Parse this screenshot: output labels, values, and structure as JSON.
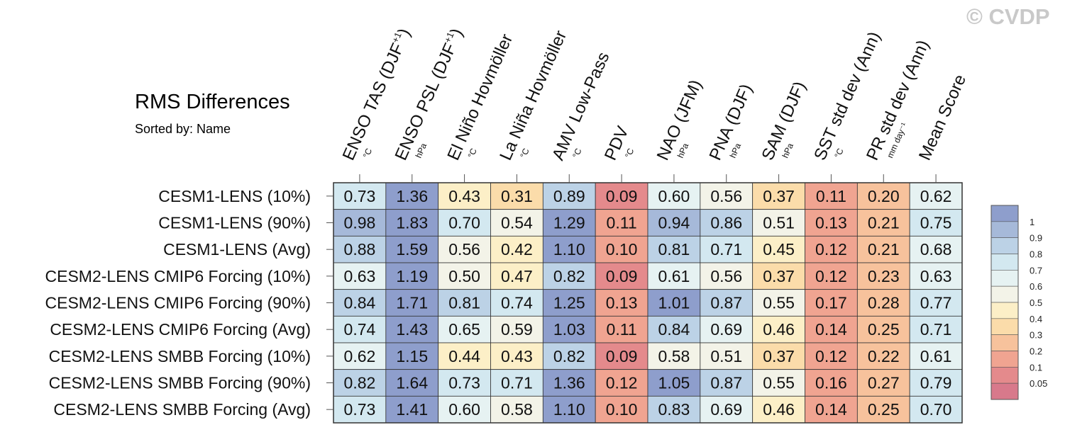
{
  "watermark": "© CVDP",
  "title": "RMS Differences",
  "subtitle": "Sorted by: Name",
  "chart_data": {
    "type": "heatmap",
    "title": "RMS Differences",
    "subtitle": "Sorted by: Name",
    "columns": [
      {
        "name": "ENSO TAS (DJF",
        "sup": "+1",
        "close": ")",
        "unit": "°C"
      },
      {
        "name": "ENSO PSL (DJF",
        "sup": "+1",
        "close": ")",
        "unit": "hPa"
      },
      {
        "name": "El Niño Hovmöller",
        "sup": "",
        "close": "",
        "unit": "°C"
      },
      {
        "name": "La Niña Hovmöller",
        "sup": "",
        "close": "",
        "unit": "°C"
      },
      {
        "name": "AMV Low-Pass",
        "sup": "",
        "close": "",
        "unit": "°C"
      },
      {
        "name": "PDV",
        "sup": "",
        "close": "",
        "unit": "°C"
      },
      {
        "name": "NAO (JFM)",
        "sup": "",
        "close": "",
        "unit": "hPa"
      },
      {
        "name": "PNA (DJF)",
        "sup": "",
        "close": "",
        "unit": "hPa"
      },
      {
        "name": "SAM (DJF)",
        "sup": "",
        "close": "",
        "unit": "hPa"
      },
      {
        "name": "SST std dev (Ann)",
        "sup": "",
        "close": "",
        "unit": "°C"
      },
      {
        "name": "PR std dev (Ann)",
        "sup": "",
        "close": "",
        "unit": "mm day⁻¹"
      },
      {
        "name": "Mean Score",
        "sup": "",
        "close": "",
        "unit": ""
      }
    ],
    "rows": [
      "CESM1-LENS (10%)",
      "CESM1-LENS (90%)",
      "CESM1-LENS (Avg)",
      "CESM2-LENS CMIP6 Forcing (10%)",
      "CESM2-LENS CMIP6 Forcing (90%)",
      "CESM2-LENS CMIP6 Forcing (Avg)",
      "CESM2-LENS SMBB Forcing (10%)",
      "CESM2-LENS SMBB Forcing (90%)",
      "CESM2-LENS SMBB Forcing (Avg)"
    ],
    "values": [
      [
        "0.73",
        "1.36",
        "0.43",
        "0.31",
        "0.89",
        "0.09",
        "0.60",
        "0.56",
        "0.37",
        "0.11",
        "0.20",
        "0.62"
      ],
      [
        "0.98",
        "1.83",
        "0.70",
        "0.54",
        "1.29",
        "0.11",
        "0.94",
        "0.86",
        "0.51",
        "0.13",
        "0.21",
        "0.75"
      ],
      [
        "0.88",
        "1.59",
        "0.56",
        "0.42",
        "1.10",
        "0.10",
        "0.81",
        "0.71",
        "0.45",
        "0.12",
        "0.21",
        "0.68"
      ],
      [
        "0.63",
        "1.19",
        "0.50",
        "0.47",
        "0.82",
        "0.09",
        "0.61",
        "0.56",
        "0.37",
        "0.12",
        "0.23",
        "0.63"
      ],
      [
        "0.84",
        "1.71",
        "0.81",
        "0.74",
        "1.25",
        "0.13",
        "1.01",
        "0.87",
        "0.55",
        "0.17",
        "0.28",
        "0.77"
      ],
      [
        "0.74",
        "1.43",
        "0.65",
        "0.59",
        "1.03",
        "0.11",
        "0.84",
        "0.69",
        "0.46",
        "0.14",
        "0.25",
        "0.71"
      ],
      [
        "0.62",
        "1.15",
        "0.44",
        "0.43",
        "0.82",
        "0.09",
        "0.58",
        "0.51",
        "0.37",
        "0.12",
        "0.22",
        "0.61"
      ],
      [
        "0.82",
        "1.64",
        "0.73",
        "0.71",
        "1.36",
        "0.12",
        "1.05",
        "0.87",
        "0.55",
        "0.16",
        "0.27",
        "0.79"
      ],
      [
        "0.73",
        "1.41",
        "0.60",
        "0.58",
        "1.10",
        "0.10",
        "0.83",
        "0.69",
        "0.46",
        "0.14",
        "0.25",
        "0.70"
      ]
    ],
    "colorbar": {
      "boundaries": [
        "1",
        "0.9",
        "0.8",
        "0.7",
        "0.6",
        "0.5",
        "0.4",
        "0.3",
        "0.2",
        "0.1",
        "0.05"
      ],
      "colors": [
        "#8e9ecc",
        "#a6b9d9",
        "#bcd2e6",
        "#d3e8f0",
        "#e6f2f2",
        "#f3f3e8",
        "#fcefc7",
        "#fbdcaa",
        "#f7c29c",
        "#f0a491",
        "#e48a8c",
        "#d8798b"
      ],
      "placement": "right"
    }
  }
}
